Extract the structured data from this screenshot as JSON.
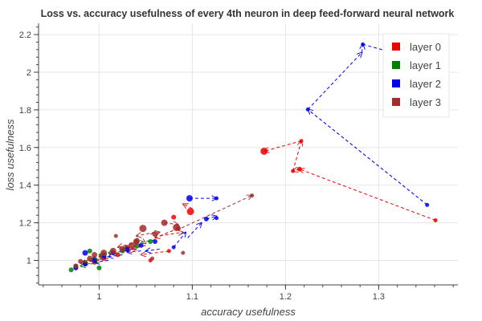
{
  "chart_data": {
    "type": "scatter",
    "title": "Loss vs. accuracy usefulness of every 4th neuron in deep feed-forward neural network",
    "xlabel": "accuracy usefulness",
    "ylabel": "loss usefulness",
    "xlim": [
      0.935,
      1.385
    ],
    "ylim": [
      0.87,
      2.26
    ],
    "xticks": [
      1,
      1.1,
      1.2,
      1.3
    ],
    "yticks": [
      1,
      1.2,
      1.4,
      1.6,
      1.8,
      2,
      2.2
    ],
    "grid": true,
    "legend_position": "top-right",
    "series": [
      {
        "name": "layer 0",
        "color": "#ee0000",
        "arrows": [
          [
            1.361,
            1.213,
            1.215,
            1.485
          ],
          [
            1.215,
            1.485,
            1.208,
            1.475
          ],
          [
            1.208,
            1.475,
            1.217,
            1.635
          ],
          [
            1.217,
            1.635,
            1.177,
            1.58
          ],
          [
            1.1,
            1.275,
            1.09,
            1.3
          ],
          [
            1.085,
            1.17,
            1.06,
            1.12
          ],
          [
            1.075,
            1.05,
            1.045,
            1.03
          ],
          [
            1.05,
            1.08,
            1.035,
            1.06
          ],
          [
            1.04,
            1.06,
            1.03,
            1.05
          ],
          [
            1.02,
            1.04,
            1.0,
            1.02
          ],
          [
            1.01,
            1.01,
            0.99,
            1.0
          ],
          [
            1.0,
            1.0,
            0.98,
            0.985
          ]
        ],
        "points": [
          {
            "x": 1.361,
            "y": 1.213,
            "size": 2.5
          },
          {
            "x": 1.215,
            "y": 1.485,
            "size": 3
          },
          {
            "x": 1.208,
            "y": 1.475,
            "size": 2.5
          },
          {
            "x": 1.217,
            "y": 1.635,
            "size": 2.5
          },
          {
            "x": 1.177,
            "y": 1.58,
            "size": 4.5
          },
          {
            "x": 1.098,
            "y": 1.26,
            "size": 4.5
          },
          {
            "x": 1.08,
            "y": 1.23,
            "size": 3
          },
          {
            "x": 1.085,
            "y": 1.17,
            "size": 3
          },
          {
            "x": 1.075,
            "y": 1.05,
            "size": 2.5
          },
          {
            "x": 1.055,
            "y": 1.0,
            "size": 2.5
          },
          {
            "x": 1.04,
            "y": 1.1,
            "size": 3
          },
          {
            "x": 1.03,
            "y": 1.07,
            "size": 3
          },
          {
            "x": 1.02,
            "y": 1.03,
            "size": 3
          },
          {
            "x": 1.005,
            "y": 1.01,
            "size": 3
          },
          {
            "x": 0.995,
            "y": 0.99,
            "size": 3
          },
          {
            "x": 0.985,
            "y": 0.985,
            "size": 3
          },
          {
            "x": 0.975,
            "y": 0.965,
            "size": 3
          }
        ]
      },
      {
        "name": "layer 1",
        "color": "#008000",
        "arrows": [
          [
            1.06,
            1.11,
            1.04,
            1.09
          ],
          [
            1.045,
            1.08,
            1.025,
            1.06
          ],
          [
            1.03,
            1.05,
            1.01,
            1.04
          ],
          [
            1.02,
            1.04,
            1.0,
            1.03
          ],
          [
            1.01,
            1.02,
            0.99,
            1.0
          ],
          [
            1.0,
            0.99,
            0.98,
            0.97
          ]
        ],
        "points": [
          {
            "x": 1.055,
            "y": 1.1,
            "size": 3
          },
          {
            "x": 1.04,
            "y": 1.075,
            "size": 3
          },
          {
            "x": 1.025,
            "y": 1.05,
            "size": 3
          },
          {
            "x": 1.015,
            "y": 1.04,
            "size": 3
          },
          {
            "x": 1.005,
            "y": 1.03,
            "size": 3
          },
          {
            "x": 0.995,
            "y": 1.01,
            "size": 3
          },
          {
            "x": 0.99,
            "y": 1.05,
            "size": 3
          },
          {
            "x": 0.985,
            "y": 0.99,
            "size": 3
          },
          {
            "x": 0.975,
            "y": 0.97,
            "size": 3
          },
          {
            "x": 0.97,
            "y": 0.95,
            "size": 3
          },
          {
            "x": 1.0,
            "y": 0.96,
            "size": 3
          }
        ]
      },
      {
        "name": "layer 2",
        "color": "#0000ee",
        "arrows": [
          [
            1.352,
            1.295,
            1.224,
            1.802
          ],
          [
            1.224,
            1.802,
            1.282,
            2.105
          ],
          [
            1.282,
            2.105,
            1.283,
            2.148
          ],
          [
            1.283,
            2.148,
            1.355,
            2.05
          ],
          [
            1.097,
            1.33,
            1.126,
            1.33
          ],
          [
            1.095,
            1.12,
            1.11,
            1.2
          ],
          [
            1.115,
            1.22,
            1.126,
            1.235
          ],
          [
            1.08,
            1.07,
            1.093,
            1.15
          ],
          [
            1.065,
            1.06,
            1.05,
            1.05
          ],
          [
            1.045,
            1.05,
            1.03,
            1.045
          ],
          [
            1.025,
            1.03,
            1.01,
            1.02
          ],
          [
            1.01,
            1.0,
            0.995,
            0.99
          ]
        ],
        "points": [
          {
            "x": 1.352,
            "y": 1.295,
            "size": 2.5
          },
          {
            "x": 1.224,
            "y": 1.802,
            "size": 2.5
          },
          {
            "x": 1.283,
            "y": 2.148,
            "size": 2.5
          },
          {
            "x": 1.097,
            "y": 1.33,
            "size": 4
          },
          {
            "x": 1.126,
            "y": 1.33,
            "size": 2.5
          },
          {
            "x": 1.115,
            "y": 1.22,
            "size": 3
          },
          {
            "x": 1.126,
            "y": 1.225,
            "size": 2.5
          },
          {
            "x": 1.08,
            "y": 1.07,
            "size": 2.5
          },
          {
            "x": 1.06,
            "y": 1.1,
            "size": 3
          },
          {
            "x": 1.045,
            "y": 1.08,
            "size": 3
          },
          {
            "x": 1.03,
            "y": 1.06,
            "size": 3
          },
          {
            "x": 1.015,
            "y": 1.04,
            "size": 3
          },
          {
            "x": 1.005,
            "y": 1.02,
            "size": 3
          },
          {
            "x": 0.995,
            "y": 1.0,
            "size": 3
          },
          {
            "x": 0.985,
            "y": 1.04,
            "size": 3.5
          },
          {
            "x": 0.985,
            "y": 0.98,
            "size": 3
          },
          {
            "x": 0.975,
            "y": 0.96,
            "size": 3
          }
        ]
      },
      {
        "name": "layer 3",
        "color": "#a52a2a",
        "arrows": [
          [
            1.083,
            1.16,
            1.164,
            1.345
          ],
          [
            1.07,
            1.2,
            1.085,
            1.19
          ],
          [
            1.055,
            1.14,
            1.065,
            1.15
          ],
          [
            1.04,
            1.12,
            1.05,
            1.09
          ],
          [
            1.065,
            1.13,
            1.09,
            1.15
          ],
          [
            1.035,
            1.09,
            1.02,
            1.07
          ],
          [
            1.06,
            1.15,
            1.04,
            1.13
          ],
          [
            1.02,
            1.04,
            1.0,
            1.02
          ],
          [
            1.005,
            1.01,
            0.985,
            0.99
          ]
        ],
        "points": [
          {
            "x": 1.164,
            "y": 1.345,
            "size": 2.5
          },
          {
            "x": 1.083,
            "y": 1.175,
            "size": 4.5
          },
          {
            "x": 1.07,
            "y": 1.2,
            "size": 4
          },
          {
            "x": 1.047,
            "y": 1.17,
            "size": 4.5
          },
          {
            "x": 1.04,
            "y": 1.1,
            "size": 4
          },
          {
            "x": 1.06,
            "y": 1.14,
            "size": 3.5
          },
          {
            "x": 1.035,
            "y": 1.08,
            "size": 4
          },
          {
            "x": 1.025,
            "y": 1.06,
            "size": 4
          },
          {
            "x": 1.015,
            "y": 1.05,
            "size": 4
          },
          {
            "x": 1.005,
            "y": 1.04,
            "size": 4
          },
          {
            "x": 0.995,
            "y": 1.03,
            "size": 3.5
          },
          {
            "x": 0.99,
            "y": 1.01,
            "size": 3.5
          },
          {
            "x": 0.98,
            "y": 0.995,
            "size": 3
          },
          {
            "x": 0.975,
            "y": 0.97,
            "size": 3
          },
          {
            "x": 1.018,
            "y": 1.13,
            "size": 2.5
          },
          {
            "x": 1.057,
            "y": 1.01,
            "size": 2.5
          },
          {
            "x": 1.09,
            "y": 1.04,
            "size": 2.5
          }
        ]
      }
    ]
  }
}
